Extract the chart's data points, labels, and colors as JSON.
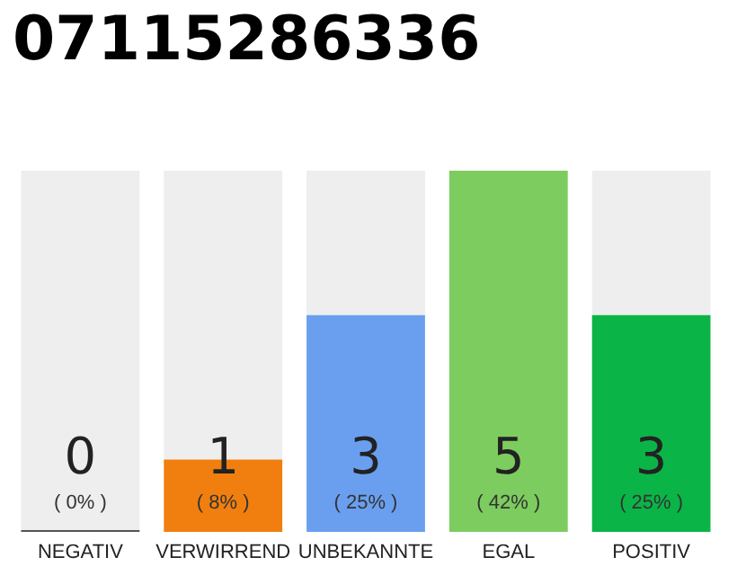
{
  "chart_data": {
    "type": "bar",
    "title": "07115286336",
    "categories": [
      "NEGATIV",
      "VERWIRREND",
      "UNBEKANNTE",
      "EGAL",
      "POSITIV"
    ],
    "values": [
      0,
      1,
      3,
      5,
      3
    ],
    "value_labels": [
      "0\n( 0% )",
      "1\n( 8% )",
      "3\n( 25% )",
      "5\n( 42% )",
      "3\n( 25% )"
    ],
    "colors": [
      "#555555",
      "#f07f0f",
      "#6a9ff0",
      "#7dcc5f",
      "#0bb446"
    ],
    "ylim": [
      0,
      5
    ],
    "tick_labels": "x"
  }
}
